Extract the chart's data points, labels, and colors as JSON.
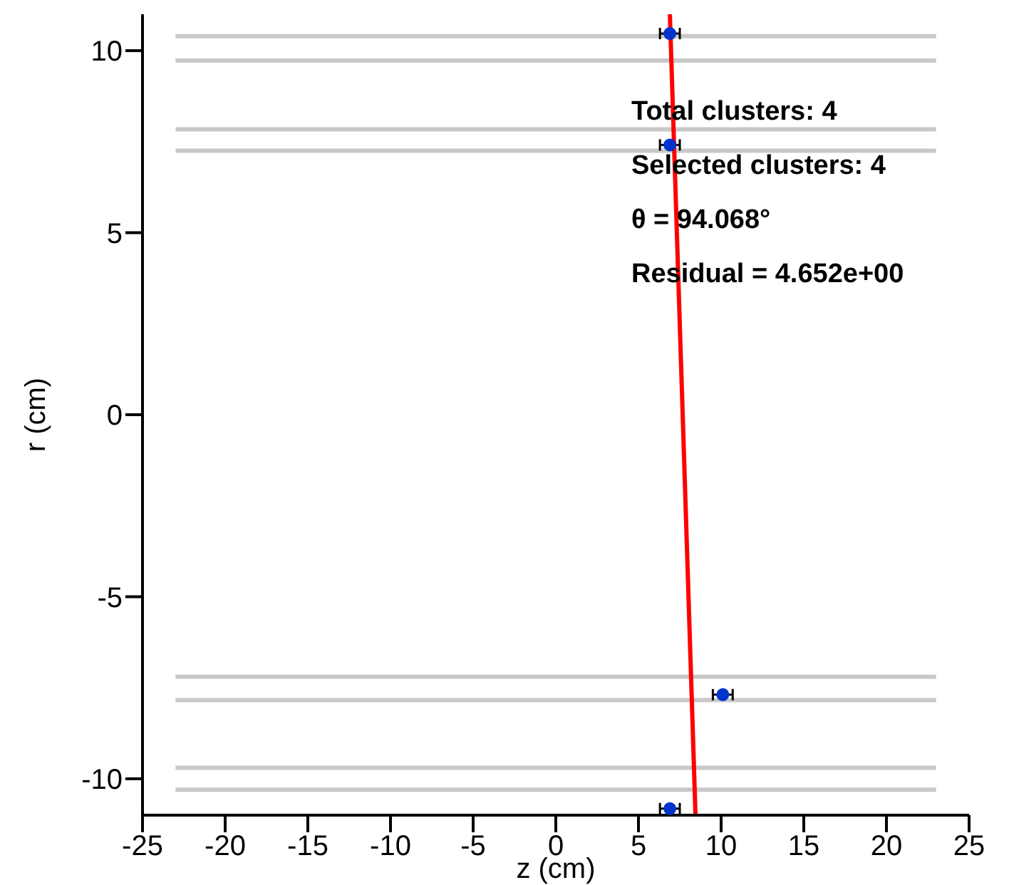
{
  "chart_data": {
    "type": "scatter",
    "xlabel": "z (cm)",
    "ylabel": "r (cm)",
    "xlim": [
      -25,
      25
    ],
    "xticks": [
      -25,
      -20,
      -15,
      -10,
      -5,
      0,
      5,
      10,
      15,
      20,
      25
    ],
    "ylim": [
      -11,
      11
    ],
    "yticks": [
      -10,
      -5,
      0,
      5,
      10
    ],
    "grid": false,
    "legend": false,
    "annotations": [
      "Total clusters: 4",
      "Selected clusters: 4",
      "θ = 94.068°",
      "Residual = 4.652e+00"
    ],
    "series": [
      {
        "type": "line",
        "marker": "none",
        "color": "#c8c8c8",
        "x": [
          -23,
          23
        ],
        "values": [
          10.4,
          10.4
        ]
      },
      {
        "type": "line",
        "marker": "none",
        "color": "#c8c8c8",
        "x": [
          -23,
          23
        ],
        "values": [
          9.73,
          9.73
        ]
      },
      {
        "type": "line",
        "marker": "none",
        "color": "#c8c8c8",
        "x": [
          -23,
          23
        ],
        "values": [
          7.84,
          7.84
        ]
      },
      {
        "type": "line",
        "marker": "none",
        "color": "#c8c8c8",
        "x": [
          -23,
          23
        ],
        "values": [
          7.25,
          7.25
        ]
      },
      {
        "type": "line",
        "marker": "none",
        "color": "#c8c8c8",
        "x": [
          -23,
          23
        ],
        "values": [
          -7.2,
          -7.2
        ]
      },
      {
        "type": "line",
        "marker": "none",
        "color": "#c8c8c8",
        "x": [
          -23,
          23
        ],
        "values": [
          -7.84,
          -7.84
        ]
      },
      {
        "type": "line",
        "marker": "none",
        "color": "#c8c8c8",
        "x": [
          -23,
          23
        ],
        "values": [
          -9.7,
          -9.7
        ]
      },
      {
        "type": "line",
        "marker": "none",
        "color": "#c8c8c8",
        "x": [
          -23,
          23
        ],
        "values": [
          -10.3,
          -10.3
        ]
      },
      {
        "type": "line",
        "marker": "none",
        "color": "#ff0000",
        "x": [
          6.9,
          8.45
        ],
        "values": [
          11,
          -11
        ]
      },
      {
        "marker": "circle",
        "color": "#0033cc",
        "x": [
          6.9,
          6.9,
          10.1,
          6.9
        ],
        "values": [
          10.47,
          7.41,
          -7.69,
          -10.82
        ],
        "xerrors": [
          0.6,
          0.6,
          0.6,
          0.6
        ]
      }
    ]
  }
}
